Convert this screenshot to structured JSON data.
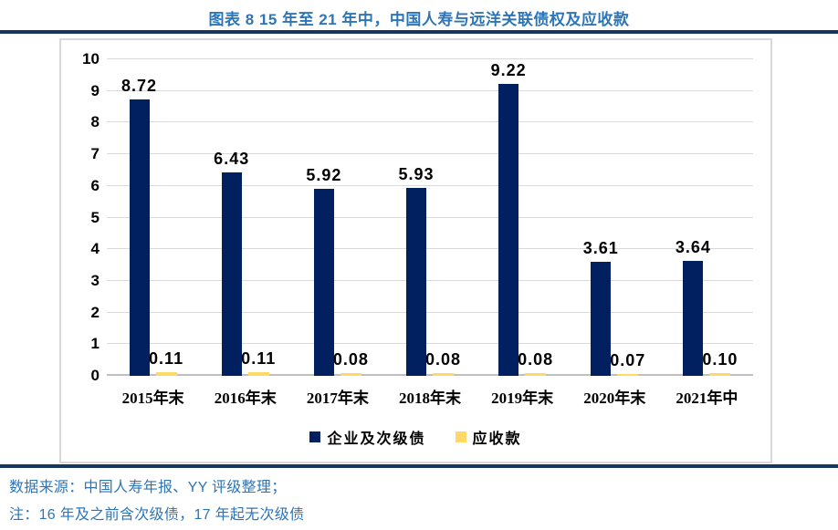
{
  "title": "图表 8 15 年至 21 年中，中国人寿与远洋关联债权及应收款",
  "footer": {
    "source": "数据来源：中国人寿年报、YY 评级整理；",
    "note": "注：16 年及之前含次级债，17 年起无次级债"
  },
  "colors": {
    "title_blue": "#2E75B6",
    "rule_navy": "#17375E",
    "bar_navy": "#002060",
    "bar_gold": "#FFD966",
    "gridline": "#D9D9D9",
    "axis_line": "#BFBFBF",
    "label_black": "#000000"
  },
  "chart_data": {
    "type": "bar",
    "categories": [
      "2015年末",
      "2016年末",
      "2017年末",
      "2018年末",
      "2019年末",
      "2020年末",
      "2021年中"
    ],
    "series": [
      {
        "name": "企业及次级债",
        "color": "#002060",
        "values": [
          8.72,
          6.43,
          5.92,
          5.93,
          9.22,
          3.61,
          3.64
        ],
        "labels": [
          "8.72",
          "6.43",
          "5.92",
          "5.93",
          "9.22",
          "3.61",
          "3.64"
        ]
      },
      {
        "name": "应收款",
        "color": "#FFD966",
        "values": [
          0.11,
          0.11,
          0.08,
          0.08,
          0.08,
          0.07,
          0.1
        ],
        "labels": [
          "0.11",
          "0.11",
          "0.08",
          "0.08",
          "0.08",
          "0.07",
          "0.10"
        ]
      }
    ],
    "title": "图表 8 15 年至 21 年中，中国人寿与远洋关联债权及应收款",
    "xlabel": "",
    "ylabel": "",
    "ylim": [
      0,
      10
    ],
    "ytick_interval": 1,
    "yticks": [
      "0",
      "1",
      "2",
      "3",
      "4",
      "5",
      "6",
      "7",
      "8",
      "9",
      "10"
    ],
    "grid": true,
    "legend_position": "bottom"
  }
}
